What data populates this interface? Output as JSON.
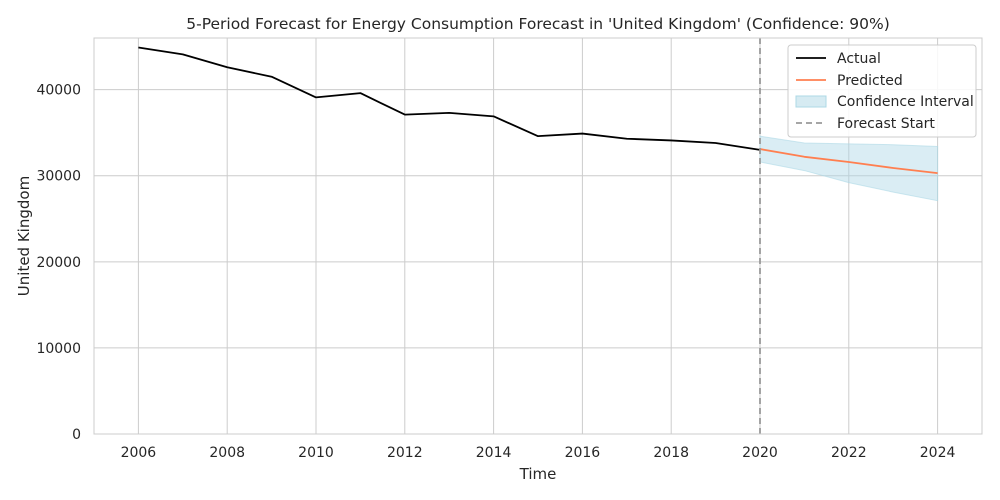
{
  "chart_data": {
    "type": "line",
    "title": "5-Period Forecast for Energy Consumption Forecast in 'United Kingdom' (Confidence: 90%)",
    "xlabel": "Time",
    "ylabel": "United Kingdom",
    "xlim": [
      2005,
      2025
    ],
    "ylim": [
      0,
      46000
    ],
    "xticks": [
      2006,
      2008,
      2010,
      2012,
      2014,
      2016,
      2018,
      2020,
      2022,
      2024
    ],
    "yticks": [
      0,
      10000,
      20000,
      30000,
      40000
    ],
    "grid": true,
    "legend_position": "top-right",
    "forecast_start": 2020,
    "series": [
      {
        "name": "Actual",
        "color": "#000000",
        "x": [
          2006,
          2007,
          2008,
          2009,
          2010,
          2011,
          2012,
          2013,
          2014,
          2015,
          2016,
          2017,
          2018,
          2019,
          2020
        ],
        "y": [
          44900,
          44100,
          42600,
          41500,
          39100,
          39600,
          37100,
          37300,
          36900,
          34600,
          34900,
          34300,
          34100,
          33800,
          33000
        ]
      },
      {
        "name": "Predicted",
        "color": "#ff7f50",
        "x": [
          2020,
          2021,
          2022,
          2023,
          2024
        ],
        "y": [
          33100,
          32200,
          31600,
          30900,
          30300
        ]
      }
    ],
    "confidence_interval": {
      "name": "Confidence Interval",
      "color": "#add8e6",
      "x": [
        2020,
        2021,
        2022,
        2023,
        2024
      ],
      "lower": [
        31600,
        30600,
        29200,
        28100,
        27100
      ],
      "upper": [
        34600,
        33800,
        33700,
        33600,
        33400
      ]
    },
    "legend": {
      "actual": "Actual",
      "predicted": "Predicted",
      "interval": "Confidence Interval",
      "forecast_start": "Forecast Start"
    }
  }
}
